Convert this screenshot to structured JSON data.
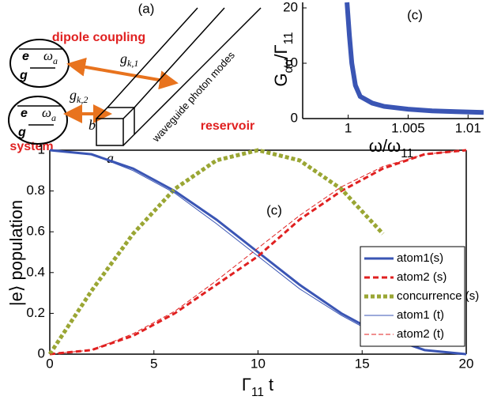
{
  "diagram": {
    "label": "(a)",
    "dipole_coupling": "dipole coupling",
    "system": "system",
    "reservoir": "reservoir",
    "waveguide": "waveguide photon modes",
    "atom1": {
      "e": "e",
      "g": "g",
      "omega": "ω",
      "omega_sub": "a"
    },
    "atom2": {
      "e": "e",
      "g": "g",
      "omega": "ω",
      "omega_sub": "a"
    },
    "g1": {
      "base": "g",
      "sub": "k,1"
    },
    "g2": {
      "base": "g",
      "sub": "k,2"
    },
    "b": "b",
    "a": "a"
  },
  "chart_data": [
    {
      "type": "line",
      "annotation": "(c)",
      "xlabel": [
        {
          "text": "ω/ω"
        },
        {
          "text": "11",
          "sub": true
        }
      ],
      "ylabel": [
        {
          "text": "G"
        },
        {
          "text": "αα",
          "sub": true
        },
        {
          "text": "/Γ"
        },
        {
          "text": "11",
          "sub": true
        }
      ],
      "xlim": [
        0.9962,
        1.0113
      ],
      "ylim": [
        0,
        21
      ],
      "xticks": [
        1,
        1.005,
        1.01
      ],
      "yticks": [
        0,
        10,
        20
      ],
      "box": false,
      "x": [
        0.9999,
        1.0001,
        1.0003,
        1.0006,
        1.001,
        1.002,
        1.003,
        1.005,
        1.007,
        1.009,
        1.0113
      ],
      "series": [
        {
          "color": "#3a55b4",
          "style": "solid",
          "width": 6,
          "values": [
            21,
            15,
            10,
            6,
            4,
            2.8,
            2.2,
            1.7,
            1.4,
            1.25,
            1.1
          ]
        }
      ]
    },
    {
      "type": "line",
      "annotation": "(c)",
      "xlabel": [
        {
          "text": "Γ"
        },
        {
          "text": "11",
          "sub": true
        },
        {
          "text": " t"
        }
      ],
      "ylabel": [
        {
          "text": "|e⟩ population"
        }
      ],
      "xlim": [
        0,
        20
      ],
      "ylim": [
        0,
        1
      ],
      "xticks": [
        0,
        5,
        10,
        15,
        20
      ],
      "yticks": [
        0,
        0.2,
        0.4,
        0.6,
        0.8,
        1
      ],
      "box": true,
      "legend": "lower right",
      "x": [
        0,
        2,
        4,
        6,
        8,
        10,
        12,
        14,
        16,
        18,
        20
      ],
      "series": [
        {
          "name": "atom1(s)",
          "color": "#3a55b4",
          "style": "solid",
          "width": 3,
          "values": [
            1,
            0.98,
            0.91,
            0.8,
            0.66,
            0.5,
            0.34,
            0.2,
            0.09,
            0.02,
            0
          ]
        },
        {
          "name": "atom2 (s)",
          "color": "#e02020",
          "style": "dashed",
          "width": 3,
          "values": [
            0,
            0.02,
            0.09,
            0.2,
            0.34,
            0.48,
            0.66,
            0.8,
            0.91,
            0.98,
            1
          ]
        },
        {
          "name": "concurrence (s)",
          "color": "#9aa634",
          "style": "dotted",
          "width": 5,
          "values": [
            0,
            0.31,
            0.59,
            0.81,
            0.95,
            1,
            0.95,
            0.81,
            0.59,
            null,
            null
          ]
        },
        {
          "name": "atom1 (t)",
          "color": "#3a55b4",
          "style": "solid",
          "width": 1,
          "values": [
            1,
            0.98,
            0.9,
            0.79,
            0.64,
            0.48,
            0.32,
            0.19,
            0.08,
            0.02,
            0
          ]
        },
        {
          "name": "atom2 (t)",
          "color": "#e02020",
          "style": "thin-dashed",
          "width": 1,
          "values": [
            0,
            0.02,
            0.1,
            0.21,
            0.36,
            0.52,
            0.68,
            0.82,
            0.92,
            0.98,
            1
          ]
        }
      ]
    }
  ]
}
